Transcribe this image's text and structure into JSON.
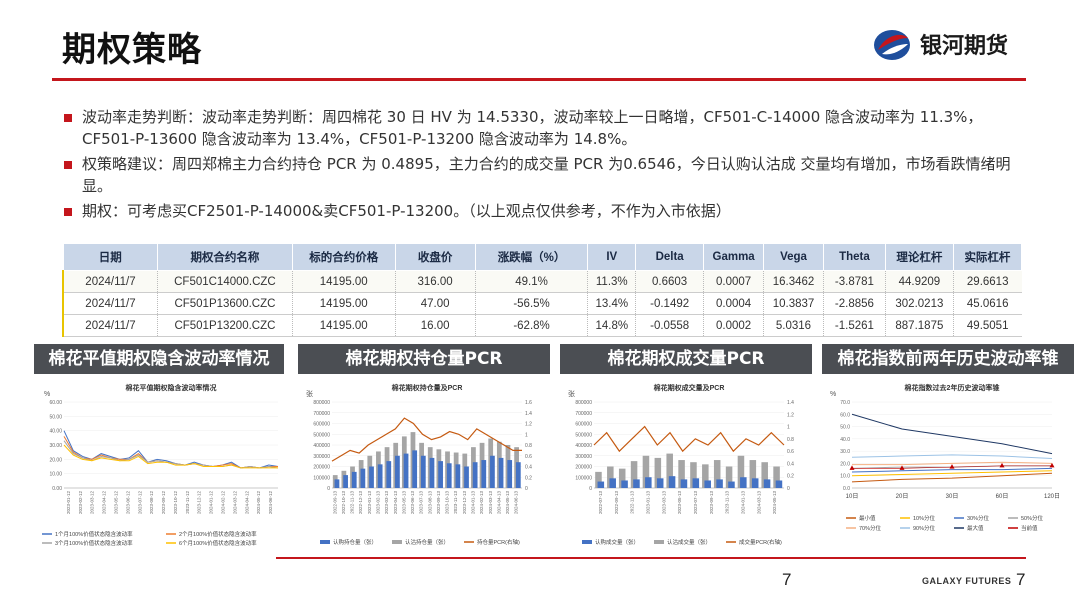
{
  "header": {
    "title": "期权策略",
    "brand": "银河期货"
  },
  "bullets": [
    "波动率走势判断：波动率走势判断：周四棉花 30 日 HV 为 14.5330，波动率较上一日略增，CF501-C-14000 隐含波动率为 11.3%，CF501-P-13600 隐含波动率为 13.4%，CF501-P-13200 隐含波动率为 14.8%。",
    "权策略建议：周四郑棉主力合约持仓 PCR 为 0.4895，主力合约的成交量 PCR 为0.6546，今日认购认沽成 交量均有增加，市场看跌情绪明显。",
    "期权：可考虑买CF2501-P-14000&卖CF501-P-13200。（以上观点仅供参考，不作为入市依据）"
  ],
  "table": {
    "headers": [
      "日期",
      "期权合约名称",
      "标的合约价格",
      "收盘价",
      "涨跌幅（%）",
      "IV",
      "Delta",
      "Gamma",
      "Vega",
      "Theta",
      "理论杠杆",
      "实际杠杆"
    ],
    "rows": [
      [
        "2024/11/7",
        "CF501C14000.CZC",
        "14195.00",
        "316.00",
        "49.1%",
        "11.3%",
        "0.6603",
        "0.0007",
        "16.3462",
        "-3.8781",
        "44.9209",
        "29.6613"
      ],
      [
        "2024/11/7",
        "CF501P13600.CZC",
        "14195.00",
        "47.00",
        "-56.5%",
        "13.4%",
        "-0.1492",
        "0.0004",
        "10.3837",
        "-2.8856",
        "302.0213",
        "45.0616"
      ],
      [
        "2024/11/7",
        "CF501P13200.CZC",
        "14195.00",
        "16.00",
        "-62.8%",
        "14.8%",
        "-0.0558",
        "0.0002",
        "5.0316",
        "-1.5261",
        "887.1875",
        "49.5051"
      ]
    ]
  },
  "panels": [
    "棉花平值期权隐含波动率情况",
    "棉花期权持仓量PCR",
    "棉花期权成交量PCR",
    "棉花指数前两年历史波动率锥"
  ],
  "chart_data": [
    {
      "type": "line",
      "title": "棉花平值期权隐含波动率情况",
      "ylabel": "%",
      "ylim": [
        0,
        60
      ],
      "yticks": [
        "60.00",
        "50.00",
        "40.00",
        "30.00",
        "20.00",
        "10.00",
        "0.00"
      ],
      "xticks": [
        "2023-01-12",
        "2023-02-12",
        "2023-03-12",
        "2023-04-12",
        "2023-05-12",
        "2023-06-12",
        "2023-07-12",
        "2023-08-12",
        "2023-09-12",
        "2023-10-12",
        "2023-11-12",
        "2023-12-12",
        "2024-01-12",
        "2024-02-12",
        "2024-03-12",
        "2024-04-12",
        "2024-05-12",
        "2024-06-12"
      ],
      "series": [
        {
          "name": "1个月100%价值状态隐含波动率",
          "color": "#4472c4",
          "values": [
            40,
            26,
            22,
            20,
            24,
            22,
            20,
            21,
            26,
            18,
            20,
            19,
            17,
            16,
            18,
            16,
            15,
            16,
            18,
            14,
            15,
            14,
            16,
            15
          ]
        },
        {
          "name": "2个月100%价值状态隐含波动率",
          "color": "#ed7d31",
          "values": [
            36,
            25,
            21,
            20,
            23,
            21,
            20,
            20,
            24,
            18,
            19,
            18,
            17,
            16,
            17,
            16,
            15,
            16,
            17,
            14,
            15,
            14,
            15,
            15
          ]
        },
        {
          "name": "3个月100%价值状态隐含波动率",
          "color": "#a5a5a5",
          "values": [
            33,
            24,
            21,
            19,
            22,
            21,
            19,
            20,
            23,
            18,
            19,
            18,
            17,
            16,
            17,
            16,
            15,
            15,
            16,
            14,
            15,
            14,
            15,
            14
          ]
        },
        {
          "name": "6个月100%价值状态隐含波动率",
          "color": "#ffc000",
          "values": [
            30,
            23,
            20,
            19,
            21,
            20,
            19,
            19,
            22,
            17,
            18,
            18,
            16,
            16,
            17,
            15,
            15,
            15,
            16,
            14,
            14,
            14,
            14,
            14
          ]
        }
      ]
    },
    {
      "type": "bar",
      "title": "棉花期权持仓量及PCR",
      "ylabel": "张",
      "ylim": [
        0,
        800000
      ],
      "y2lim": [
        0,
        1.6
      ],
      "yticks": [
        "800000",
        "700000",
        "600000",
        "500000",
        "400000",
        "300000",
        "200000",
        "100000",
        "0"
      ],
      "y2ticks": [
        "1.6",
        "1.4",
        "1.2",
        "1",
        "0.8",
        "0.6",
        "0.4",
        "0.2",
        "0"
      ],
      "xticks": [
        "2022-09-13",
        "2022-10-13",
        "2022-11-13",
        "2022-12-13",
        "2023-01-13",
        "2023-02-13",
        "2023-03-13",
        "2023-04-13",
        "2023-05-13",
        "2023-06-13",
        "2023-07-13",
        "2023-08-13",
        "2023-09-13",
        "2023-10-13",
        "2023-11-13",
        "2023-12-13",
        "2024-01-13",
        "2024-02-13",
        "2024-03-13",
        "2024-04-13",
        "2024-05-13",
        "2024-06-13"
      ],
      "series": [
        {
          "name": "认购持仓量（张）",
          "color": "#4472c4",
          "values": [
            80000,
            120000,
            150000,
            180000,
            200000,
            220000,
            250000,
            300000,
            320000,
            350000,
            300000,
            280000,
            250000,
            230000,
            220000,
            200000,
            240000,
            260000,
            300000,
            280000,
            260000,
            240000
          ]
        },
        {
          "name": "认沽持仓量（张）",
          "color": "#a5a5a5",
          "values": [
            120000,
            160000,
            200000,
            260000,
            300000,
            340000,
            380000,
            420000,
            480000,
            520000,
            420000,
            380000,
            360000,
            340000,
            330000,
            320000,
            380000,
            420000,
            460000,
            430000,
            400000,
            380000
          ]
        },
        {
          "name": "持仓量PCR(右轴)",
          "color": "#c55a11",
          "values": [
            0.5,
            0.6,
            0.7,
            0.65,
            0.8,
            0.9,
            1.0,
            1.1,
            1.3,
            1.2,
            1.0,
            0.9,
            0.95,
            1.05,
            1.0,
            0.9,
            1.1,
            1.0,
            0.9,
            0.8,
            0.7,
            0.7
          ]
        }
      ]
    },
    {
      "type": "bar",
      "title": "棉花期权成交量及PCR",
      "ylabel": "张",
      "ylim": [
        0,
        800000
      ],
      "y2lim": [
        0,
        1.4
      ],
      "yticks": [
        "800000",
        "700000",
        "600000",
        "500000",
        "400000",
        "300000",
        "200000",
        "100000",
        "0"
      ],
      "y2ticks": [
        "1.4",
        "1.2",
        "1",
        "0.8",
        "0.6",
        "0.4",
        "0.2",
        "0"
      ],
      "xticks": [
        "2022-07-13",
        "2022-09-13",
        "2022-11-13",
        "2023-01-13",
        "2023-03-13",
        "2023-05-13",
        "2023-07-13",
        "2023-09-13",
        "2023-11-13",
        "2024-01-13",
        "2024-03-13",
        "2024-05-13"
      ],
      "series": [
        {
          "name": "认购成交量（张）",
          "color": "#4472c4",
          "values": [
            60000,
            90000,
            70000,
            80000,
            100000,
            90000,
            110000,
            80000,
            90000,
            70000,
            80000,
            60000,
            100000,
            90000,
            80000,
            70000
          ]
        },
        {
          "name": "认沽成交量（张）",
          "color": "#a5a5a5",
          "values": [
            150000,
            200000,
            180000,
            250000,
            300000,
            280000,
            320000,
            260000,
            240000,
            220000,
            260000,
            200000,
            300000,
            260000,
            240000,
            200000
          ]
        },
        {
          "name": "成交量PCR(右轴)",
          "color": "#c55a11",
          "values": [
            0.7,
            0.9,
            0.6,
            0.8,
            1.0,
            0.7,
            0.9,
            0.6,
            0.8,
            0.7,
            0.9,
            0.6,
            0.8,
            0.7,
            0.9,
            0.7
          ]
        }
      ]
    },
    {
      "type": "line",
      "title": "棉花指数过去2年历史波动率锥",
      "ylabel": "%",
      "ylim": [
        0,
        70
      ],
      "yticks": [
        "70.0",
        "60.0",
        "50.0",
        "40.0",
        "30.0",
        "20.0",
        "10.0",
        "0.0"
      ],
      "categories": [
        "10日",
        "20日",
        "30日",
        "60日",
        "120日"
      ],
      "series": [
        {
          "name": "最小值",
          "color": "#c55a11",
          "values": [
            5,
            7,
            8,
            10,
            12
          ]
        },
        {
          "name": "10%分位",
          "color": "#ffc000",
          "values": [
            10,
            11,
            12,
            13,
            14
          ]
        },
        {
          "name": "30%分位",
          "color": "#4472c4",
          "values": [
            13,
            14,
            15,
            15,
            16
          ]
        },
        {
          "name": "50%分位",
          "color": "#a5a5a5",
          "values": [
            16,
            17,
            17,
            18,
            18
          ]
        },
        {
          "name": "70%分位",
          "color": "#f4b183",
          "values": [
            19,
            19,
            20,
            21,
            20
          ]
        },
        {
          "name": "90%分位",
          "color": "#9dc3e6",
          "values": [
            25,
            26,
            27,
            26,
            24
          ]
        },
        {
          "name": "最大值",
          "color": "#1f3864",
          "values": [
            60,
            48,
            42,
            36,
            28
          ]
        },
        {
          "name": "当前值",
          "color": "#c00000",
          "values": [
            16,
            16,
            17,
            18,
            18
          ]
        }
      ]
    }
  ],
  "footer": {
    "page_left": "7",
    "brand_en": "GALAXY FUTURES",
    "page_right": "7"
  }
}
